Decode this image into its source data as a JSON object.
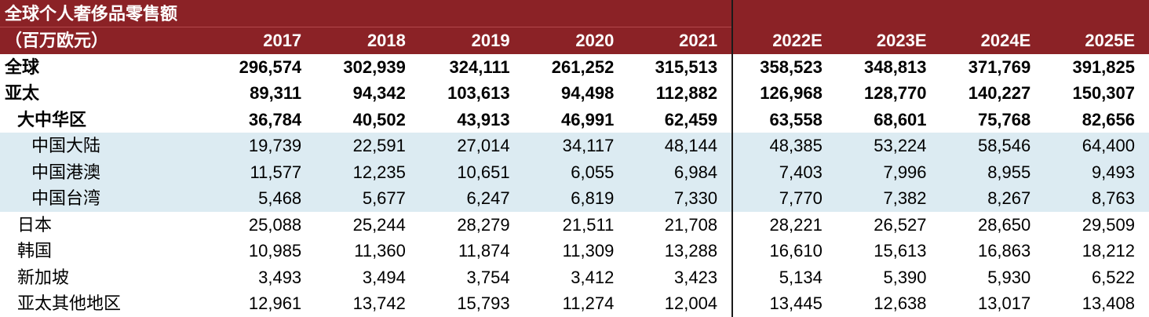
{
  "table": {
    "title": "全球个人奢侈品零售额",
    "unit": "（百万欧元）",
    "columns": [
      "2017",
      "2018",
      "2019",
      "2020",
      "2021",
      "2022E",
      "2023E",
      "2024E",
      "2025E"
    ],
    "rows": [
      {
        "label": "全球",
        "values": [
          "296,574",
          "302,939",
          "324,111",
          "261,252",
          "315,513",
          "358,523",
          "348,813",
          "371,769",
          "391,825"
        ]
      },
      {
        "label": "亚太",
        "values": [
          "89,311",
          "94,342",
          "103,613",
          "94,498",
          "112,882",
          "126,968",
          "128,770",
          "140,227",
          "150,307"
        ]
      },
      {
        "label": "大中华区",
        "values": [
          "36,784",
          "40,502",
          "43,913",
          "46,991",
          "62,459",
          "63,558",
          "68,601",
          "75,768",
          "82,656"
        ]
      },
      {
        "label": "中国大陆",
        "values": [
          "19,739",
          "22,591",
          "27,014",
          "34,117",
          "48,144",
          "48,385",
          "53,224",
          "58,546",
          "64,400"
        ]
      },
      {
        "label": "中国港澳",
        "values": [
          "11,577",
          "12,235",
          "10,651",
          "6,055",
          "6,984",
          "7,403",
          "7,996",
          "8,955",
          "9,493"
        ]
      },
      {
        "label": "中国台湾",
        "values": [
          "5,468",
          "5,677",
          "6,247",
          "6,819",
          "7,330",
          "7,770",
          "7,382",
          "8,267",
          "8,763"
        ]
      },
      {
        "label": "日本",
        "values": [
          "25,088",
          "25,244",
          "28,279",
          "21,511",
          "21,708",
          "28,221",
          "26,527",
          "28,650",
          "29,509"
        ]
      },
      {
        "label": "韩国",
        "values": [
          "10,985",
          "11,360",
          "11,874",
          "11,309",
          "13,288",
          "16,610",
          "15,613",
          "16,863",
          "18,212"
        ]
      },
      {
        "label": "新加坡",
        "values": [
          "3,493",
          "3,494",
          "3,754",
          "3,412",
          "3,423",
          "5,134",
          "5,390",
          "5,930",
          "6,522"
        ]
      },
      {
        "label": "亚太其他地区",
        "values": [
          "12,961",
          "13,742",
          "15,793",
          "11,274",
          "12,004",
          "13,445",
          "12,638",
          "13,017",
          "13,408"
        ]
      }
    ]
  },
  "colors": {
    "header_bg": "#8b2226",
    "header_text": "#ffffff",
    "highlight_bg": "#dcebf2",
    "separator": "#1a1a1a"
  }
}
